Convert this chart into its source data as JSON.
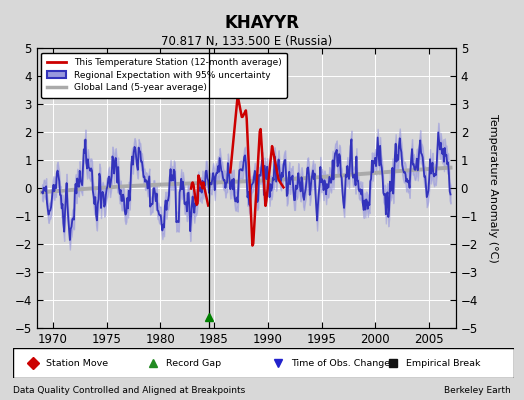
{
  "title": "KHAYYR",
  "subtitle": "70.817 N, 133.500 E (Russia)",
  "ylabel": "Temperature Anomaly (°C)",
  "xlabel_bottom_left": "Data Quality Controlled and Aligned at Breakpoints",
  "xlabel_bottom_right": "Berkeley Earth",
  "ylim": [
    -5,
    5
  ],
  "xlim": [
    1968.5,
    2007.5
  ],
  "xticks": [
    1970,
    1975,
    1980,
    1985,
    1990,
    1995,
    2000,
    2005
  ],
  "yticks": [
    -5,
    -4,
    -3,
    -2,
    -1,
    0,
    1,
    2,
    3,
    4,
    5
  ],
  "background_color": "#d8d8d8",
  "plot_bg_color": "#d8d8d8",
  "regional_color": "#3333bb",
  "regional_fill_color": "#9999dd",
  "station_color": "#cc0000",
  "global_color": "#aaaaaa",
  "vertical_line_x": 1984.5,
  "record_gap_x": 1984.5,
  "legend_labels": [
    "This Temperature Station (12-month average)",
    "Regional Expectation with 95% uncertainty",
    "Global Land (5-year average)"
  ],
  "bottom_legend": [
    "Station Move",
    "Record Gap",
    "Time of Obs. Change",
    "Empirical Break"
  ]
}
